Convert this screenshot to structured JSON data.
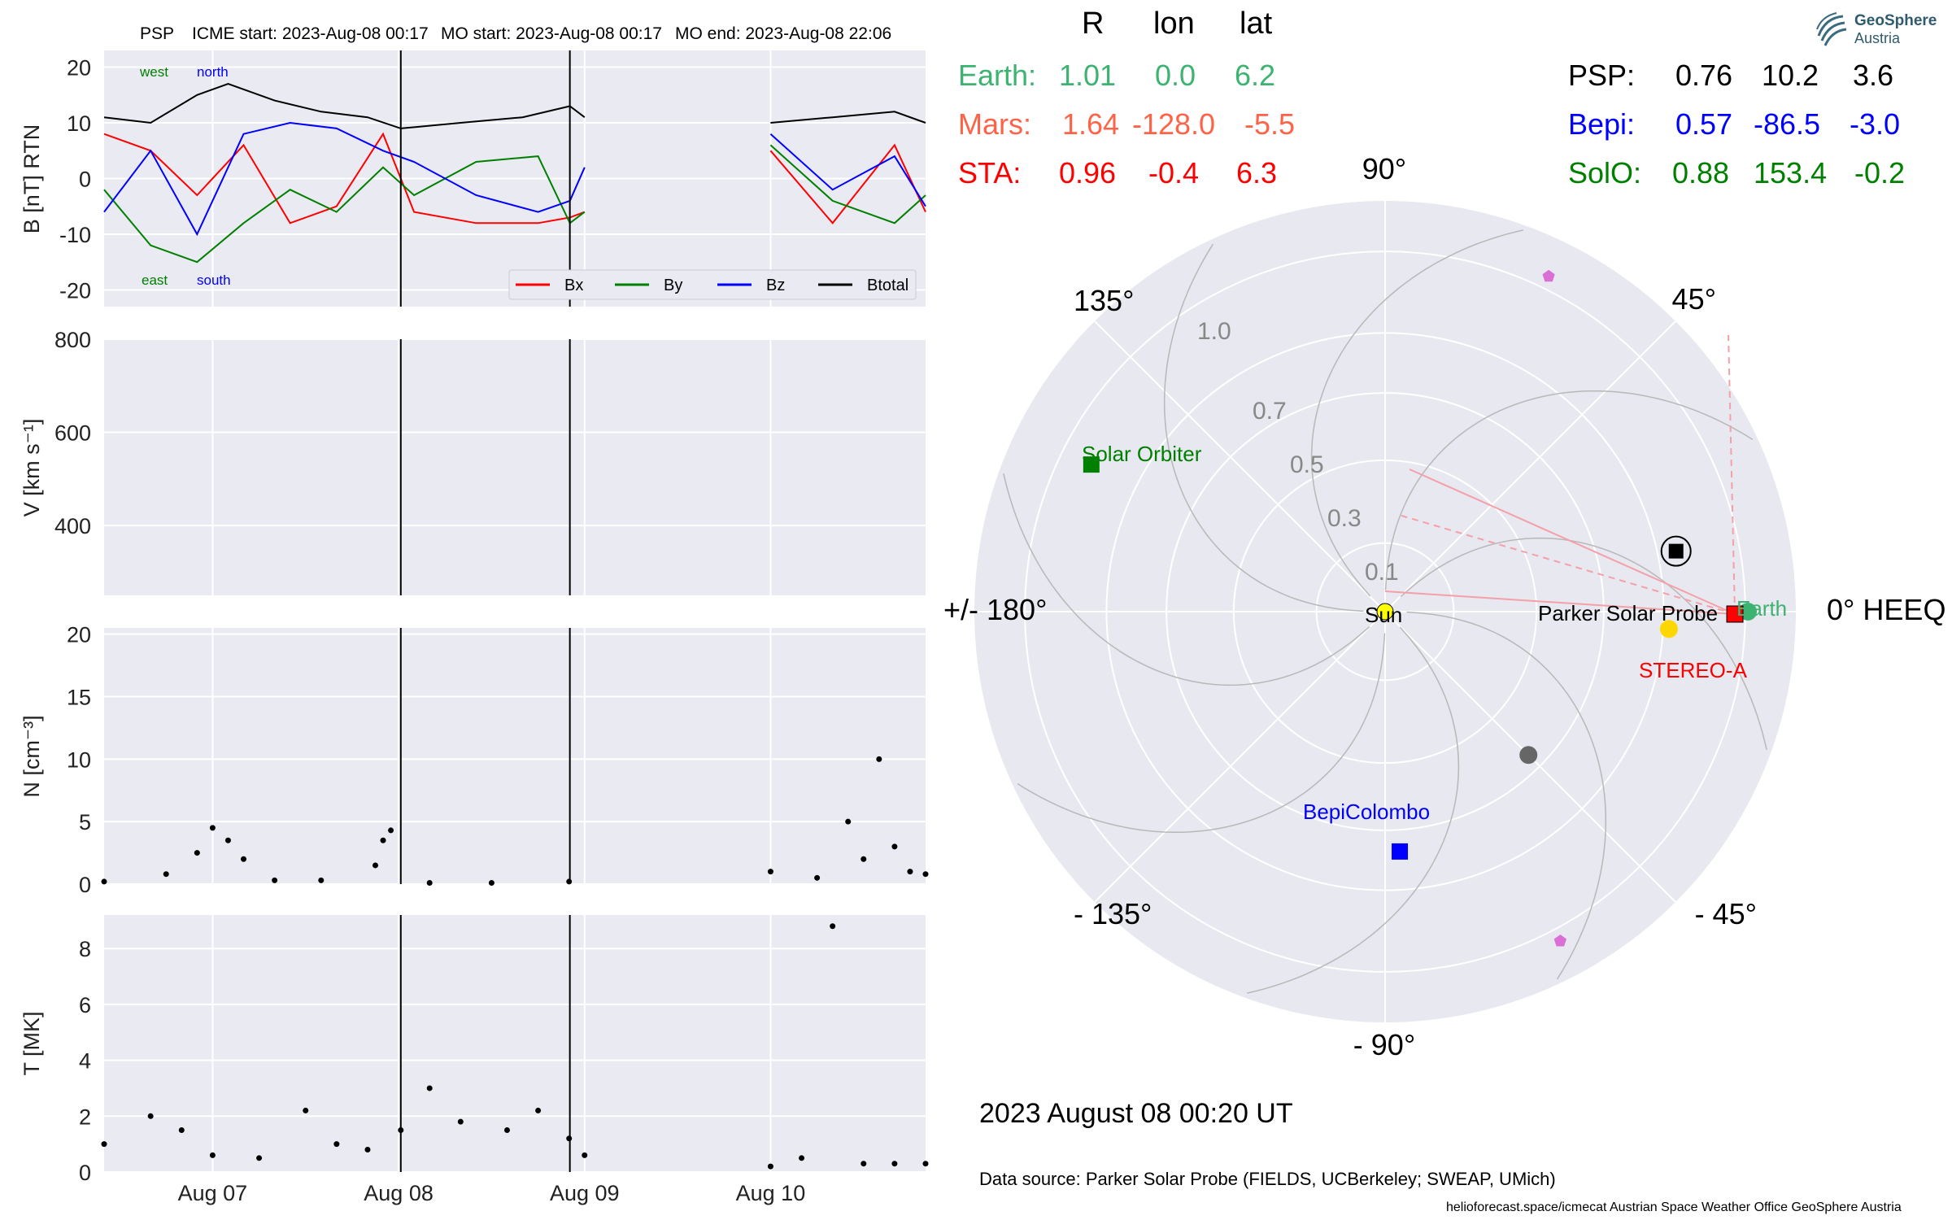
{
  "header": {
    "spacecraft": "PSP",
    "icme_start": "ICME start: 2023-Aug-08 00:17",
    "mo_start": "MO start: 2023-Aug-08 00:17",
    "mo_end": "MO end: 2023-Aug-08 22:06"
  },
  "logo": {
    "name": "GeoSphere",
    "sub": "Austria"
  },
  "colors": {
    "bx": "#ff0000",
    "by": "#008000",
    "bz": "#0000ff",
    "btotal": "#000000",
    "earth": "#3cb371",
    "mars": "#ff6347",
    "sta": "#ff0000",
    "psp": "#000000",
    "bepi": "#0000ff",
    "solo": "#008000",
    "panel_bg": "#eaeaf2",
    "polar_bg": "#e8e8f0"
  },
  "positions": {
    "headers": [
      "R",
      "lon",
      "lat"
    ],
    "left": [
      {
        "name": "Earth:",
        "R": "1.01",
        "lon": "0.0",
        "lat": "6.2",
        "color": "#3cb371"
      },
      {
        "name": "Mars:",
        "R": "1.64",
        "lon": "-128.0",
        "lat": "-5.5",
        "color": "#ff6347"
      },
      {
        "name": "STA:",
        "R": "0.96",
        "lon": "-0.4",
        "lat": "6.3",
        "color": "#ff0000"
      }
    ],
    "right": [
      {
        "name": "PSP:",
        "R": "0.76",
        "lon": "10.2",
        "lat": "3.6",
        "color": "#000000"
      },
      {
        "name": "Bepi:",
        "R": "0.57",
        "lon": "-86.5",
        "lat": "-3.0",
        "color": "#0000ff"
      },
      {
        "name": "SolO:",
        "R": "0.88",
        "lon": "153.4",
        "lat": "-0.2",
        "color": "#008000"
      }
    ]
  },
  "polar": {
    "angle_labels": {
      "a0": "0° HEEQ",
      "a45": "45°",
      "a90": "90°",
      "a135": "135°",
      "a180": "+/- 180°",
      "am135": "- 135°",
      "am90": "- 90°",
      "am45": "- 45°"
    },
    "radial_labels": [
      "0.1",
      "0.3",
      "0.5",
      "0.7",
      "1.0"
    ],
    "bodies": {
      "sun": "Sun",
      "earth": "Earth",
      "psp": "Parker Solar Probe",
      "sta": "STEREO-A",
      "solo": "Solar Orbiter",
      "bepi": "BepiColombo"
    },
    "objects": [
      {
        "name": "Sun",
        "r": 0.0,
        "lon": 0.0
      },
      {
        "name": "Earth",
        "r": 1.01,
        "lon": 0.0
      },
      {
        "name": "STEREO-A",
        "r": 0.96,
        "lon": -0.4
      },
      {
        "name": "Parker Solar Probe",
        "r": 0.76,
        "lon": 10.2
      },
      {
        "name": "BepiColombo",
        "r": 0.57,
        "lon": -86.5
      },
      {
        "name": "Solar Orbiter",
        "r": 0.88,
        "lon": 153.4
      },
      {
        "name": "Mercury",
        "r": 0.45,
        "lon": -45.0
      },
      {
        "name": "Venus",
        "r": 0.72,
        "lon": -3.5
      }
    ]
  },
  "timestamp": "2023 August 08  00:20 UT",
  "data_source": "Data source: Parker Solar Probe (FIELDS, UCBerkeley; SWEAP, UMich)",
  "footer": "helioforecast.space/icmecat   Austrian Space Weather Office   GeoSphere Austria",
  "chart_data": [
    {
      "type": "line",
      "panel": "B",
      "ylabel": "B [nT] RTN",
      "ylim": [
        -23,
        23
      ],
      "yticks": [
        -20,
        -10,
        0,
        10,
        20
      ],
      "x_ticks": [
        "Aug 07",
        "Aug 08",
        "Aug 09",
        "Aug 10"
      ],
      "x_range_days": [
        "2023-08-06T10:00",
        "2023-08-10T20:00"
      ],
      "annotations": {
        "west": "west",
        "north": "north",
        "east": "east",
        "south": "south"
      },
      "legend": [
        "Bx",
        "By",
        "Bz",
        "Btotal"
      ],
      "legend_position": "lower right",
      "event_lines": [
        "2023-08-08T00:17",
        "2023-08-08T22:06"
      ],
      "series": [
        {
          "name": "Btotal",
          "x": [
            "2023-08-06T10:00",
            "2023-08-06T16:00",
            "2023-08-06T22:00",
            "2023-08-07T02:00",
            "2023-08-07T08:00",
            "2023-08-07T14:00",
            "2023-08-07T20:00",
            "2023-08-08T00:17",
            "2023-08-08T08:00",
            "2023-08-08T16:00",
            "2023-08-08T22:06",
            "2023-08-09T00:00",
            "2023-08-10T00:00",
            "2023-08-10T08:00",
            "2023-08-10T16:00",
            "2023-08-10T20:00"
          ],
          "values": [
            11,
            10,
            15,
            17,
            14,
            12,
            11,
            9,
            10,
            11,
            13,
            11,
            10,
            11,
            12,
            10
          ]
        },
        {
          "name": "Bx",
          "x": [
            "2023-08-06T10:00",
            "2023-08-06T16:00",
            "2023-08-06T22:00",
            "2023-08-07T04:00",
            "2023-08-07T10:00",
            "2023-08-07T16:00",
            "2023-08-07T22:00",
            "2023-08-08T02:00",
            "2023-08-08T10:00",
            "2023-08-08T18:00",
            "2023-08-08T22:06",
            "2023-08-09T00:00",
            "2023-08-10T00:00",
            "2023-08-10T08:00",
            "2023-08-10T16:00",
            "2023-08-10T20:00"
          ],
          "values": [
            8,
            5,
            -3,
            6,
            -8,
            -5,
            8,
            -6,
            -8,
            -8,
            -7,
            -6,
            5,
            -8,
            6,
            -6
          ]
        },
        {
          "name": "By",
          "x": [
            "2023-08-06T10:00",
            "2023-08-06T16:00",
            "2023-08-06T22:00",
            "2023-08-07T04:00",
            "2023-08-07T10:00",
            "2023-08-07T16:00",
            "2023-08-07T22:00",
            "2023-08-08T02:00",
            "2023-08-08T10:00",
            "2023-08-08T18:00",
            "2023-08-08T22:06",
            "2023-08-09T00:00",
            "2023-08-10T00:00",
            "2023-08-10T08:00",
            "2023-08-10T16:00",
            "2023-08-10T20:00"
          ],
          "values": [
            -2,
            -12,
            -15,
            -8,
            -2,
            -6,
            2,
            -3,
            3,
            4,
            -8,
            -6,
            6,
            -4,
            -8,
            -3
          ]
        },
        {
          "name": "Bz",
          "x": [
            "2023-08-06T10:00",
            "2023-08-06T16:00",
            "2023-08-06T22:00",
            "2023-08-07T04:00",
            "2023-08-07T10:00",
            "2023-08-07T16:00",
            "2023-08-07T22:00",
            "2023-08-08T02:00",
            "2023-08-08T10:00",
            "2023-08-08T18:00",
            "2023-08-08T22:06",
            "2023-08-09T00:00",
            "2023-08-10T00:00",
            "2023-08-10T08:00",
            "2023-08-10T16:00",
            "2023-08-10T20:00"
          ],
          "values": [
            -6,
            5,
            -10,
            8,
            10,
            9,
            5,
            3,
            -3,
            -6,
            -4,
            2,
            8,
            -2,
            4,
            -5
          ]
        }
      ]
    },
    {
      "type": "line",
      "panel": "V",
      "ylabel": "V [km s⁻¹]",
      "ylim": [
        250,
        800
      ],
      "yticks": [
        400,
        600,
        800
      ],
      "series": []
    },
    {
      "type": "scatter",
      "panel": "N",
      "ylabel": "N [cm⁻³]",
      "ylim": [
        0,
        20.5
      ],
      "yticks": [
        0,
        5,
        10,
        15,
        20
      ],
      "series": [
        {
          "name": "N",
          "x": [
            "2023-08-06T10:00",
            "2023-08-06T18:00",
            "2023-08-06T22:00",
            "2023-08-07T00:00",
            "2023-08-07T02:00",
            "2023-08-07T04:00",
            "2023-08-07T08:00",
            "2023-08-07T14:00",
            "2023-08-07T21:00",
            "2023-08-07T22:00",
            "2023-08-07T23:00",
            "2023-08-08T04:00",
            "2023-08-08T12:00",
            "2023-08-08T22:00",
            "2023-08-10T00:00",
            "2023-08-10T06:00",
            "2023-08-10T10:00",
            "2023-08-10T12:00",
            "2023-08-10T14:00",
            "2023-08-10T16:00",
            "2023-08-10T18:00",
            "2023-08-10T20:00"
          ],
          "values": [
            0.2,
            0.8,
            2.5,
            4.5,
            3.5,
            2.0,
            0.3,
            0.3,
            1.5,
            3.5,
            4.3,
            0.1,
            0.1,
            0.2,
            1.0,
            0.5,
            5.0,
            2.0,
            10.0,
            3.0,
            1.0,
            0.8
          ]
        }
      ]
    },
    {
      "type": "scatter",
      "panel": "T",
      "ylabel": "T [MK]",
      "ylim": [
        0,
        9.2
      ],
      "yticks": [
        0,
        2,
        4,
        6,
        8
      ],
      "series": [
        {
          "name": "T",
          "x": [
            "2023-08-06T10:00",
            "2023-08-06T16:00",
            "2023-08-06T20:00",
            "2023-08-07T00:00",
            "2023-08-07T06:00",
            "2023-08-07T12:00",
            "2023-08-07T16:00",
            "2023-08-07T20:00",
            "2023-08-08T00:17",
            "2023-08-08T04:00",
            "2023-08-08T08:00",
            "2023-08-08T14:00",
            "2023-08-08T18:00",
            "2023-08-08T22:00",
            "2023-08-09T00:00",
            "2023-08-10T00:00",
            "2023-08-10T04:00",
            "2023-08-10T08:00",
            "2023-08-10T12:00",
            "2023-08-10T16:00",
            "2023-08-10T20:00"
          ],
          "values": [
            1.0,
            2.0,
            1.5,
            0.6,
            0.5,
            2.2,
            1.0,
            0.8,
            1.5,
            3.0,
            1.8,
            1.5,
            2.2,
            1.2,
            0.6,
            0.2,
            0.5,
            8.8,
            0.3,
            0.3,
            0.3
          ]
        }
      ]
    }
  ]
}
